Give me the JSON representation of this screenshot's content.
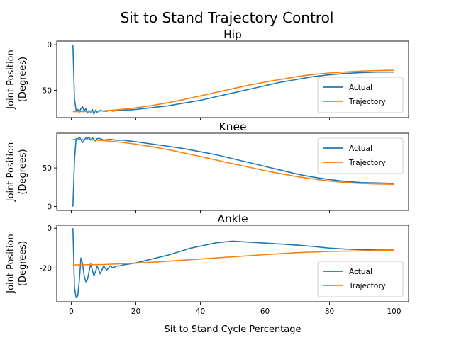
{
  "figure": {
    "title": "Sit to Stand Trajectory Control",
    "xlabel": "Sit to Stand Cycle Percentage"
  },
  "colors": {
    "actual": "#1f77b4",
    "trajectory": "#ff7f0e",
    "axes": "#000000",
    "legend_border": "#cccccc"
  },
  "chart_data": [
    {
      "type": "line",
      "title": "Hip",
      "ylabel": [
        "Joint Position",
        "(Degrees)"
      ],
      "xlim": [
        -4.5,
        104.5
      ],
      "ylim": [
        -80,
        4
      ],
      "yticks": [
        0,
        -50
      ],
      "show_xticklabels": false,
      "legend": {
        "placement": "lower-right",
        "entries": [
          "Actual",
          "Trajectory"
        ]
      },
      "series": [
        {
          "name": "Actual",
          "color": "#1f77b4",
          "x": [
            0.5,
            1.0,
            1.5,
            2,
            2.5,
            3,
            3.5,
            4,
            4.5,
            5,
            5.5,
            6,
            6.5,
            7,
            7.5,
            8,
            9,
            10,
            11,
            12,
            13,
            14,
            16,
            18,
            20,
            25,
            30,
            35,
            40,
            45,
            50,
            55,
            60,
            65,
            70,
            75,
            80,
            85,
            90,
            95,
            100
          ],
          "y": [
            0,
            -60,
            -72,
            -71,
            -74,
            -70,
            -68,
            -73,
            -70,
            -75,
            -72,
            -74,
            -71,
            -76,
            -72,
            -74,
            -72,
            -73,
            -73,
            -72,
            -73,
            -72,
            -72,
            -71.5,
            -71,
            -69,
            -67,
            -64,
            -61,
            -57,
            -53,
            -49,
            -45,
            -41,
            -38,
            -35,
            -33,
            -31.5,
            -30.5,
            -30,
            -30
          ]
        },
        {
          "name": "Trajectory",
          "color": "#ff7f0e",
          "x": [
            0.5,
            5,
            10,
            15,
            20,
            25,
            30,
            35,
            40,
            45,
            50,
            55,
            60,
            65,
            70,
            75,
            80,
            85,
            90,
            95,
            100
          ],
          "y": [
            -73.5,
            -73.3,
            -72.5,
            -71.2,
            -69.3,
            -66.7,
            -63.6,
            -60,
            -56.2,
            -52.2,
            -48.3,
            -44.4,
            -41,
            -37.9,
            -35,
            -32.6,
            -31,
            -29.8,
            -28.8,
            -28.3,
            -28
          ]
        }
      ]
    },
    {
      "type": "line",
      "title": "Knee",
      "ylabel": [
        "Joint Position",
        "(Degrees)"
      ],
      "xlim": [
        -4.5,
        104.5
      ],
      "ylim": [
        -5,
        95
      ],
      "yticks": [
        0,
        50
      ],
      "show_xticklabels": false,
      "legend": {
        "placement": "top-right",
        "entries": [
          "Actual",
          "Trajectory"
        ]
      },
      "series": [
        {
          "name": "Actual",
          "color": "#1f77b4",
          "x": [
            0.5,
            1.0,
            1.5,
            2,
            2.5,
            3,
            3.5,
            4,
            4.5,
            5,
            5.5,
            6,
            6.5,
            7,
            7.5,
            8,
            9,
            10,
            12,
            14,
            16,
            18,
            20,
            25,
            30,
            35,
            40,
            45,
            50,
            55,
            60,
            65,
            70,
            75,
            80,
            85,
            90,
            95,
            100
          ],
          "y": [
            0,
            60,
            88,
            87,
            90,
            87,
            83,
            86,
            89,
            88,
            90,
            86,
            89,
            87,
            85,
            88,
            88,
            86,
            87,
            86,
            86,
            85,
            84,
            81,
            78,
            75,
            71,
            67,
            62,
            57,
            52,
            47,
            42,
            38,
            35,
            32.5,
            31,
            30.5,
            30
          ]
        },
        {
          "name": "Trajectory",
          "color": "#ff7f0e",
          "x": [
            0.5,
            5,
            10,
            15,
            20,
            25,
            30,
            35,
            40,
            45,
            50,
            55,
            60,
            65,
            70,
            75,
            80,
            85,
            90,
            95,
            100
          ],
          "y": [
            87,
            86.7,
            85.5,
            83.5,
            80.8,
            77.5,
            73.7,
            69.3,
            64.8,
            60.1,
            55.5,
            51,
            46.5,
            42.4,
            38.7,
            35.6,
            33,
            31.1,
            29.8,
            29.1,
            28.8
          ]
        }
      ]
    },
    {
      "type": "line",
      "title": "Ankle",
      "ylabel": [
        "Joint Position",
        "(Degrees)"
      ],
      "xlim": [
        -4.5,
        104.5
      ],
      "ylim": [
        -37,
        1.5
      ],
      "yticks": [
        0,
        -20
      ],
      "xticks": [
        0,
        20,
        40,
        60,
        80,
        100
      ],
      "show_xticklabels": true,
      "legend": {
        "placement": "lower-right",
        "entries": [
          "Actual",
          "Trajectory"
        ]
      },
      "series": [
        {
          "name": "Actual",
          "color": "#1f77b4",
          "x": [
            0.5,
            1.0,
            1.5,
            2,
            2.5,
            3,
            3.5,
            4,
            4.5,
            5,
            5.5,
            6,
            6.5,
            7,
            7.5,
            8,
            8.5,
            9,
            9.5,
            10,
            11,
            12,
            13,
            14,
            15,
            16,
            18,
            20,
            25,
            30,
            35,
            37,
            40,
            45,
            50,
            55,
            60,
            65,
            70,
            75,
            80,
            85,
            90,
            95,
            100
          ],
          "y": [
            0,
            -30,
            -35,
            -34,
            -26,
            -15,
            -18,
            -24,
            -27,
            -26,
            -22,
            -18,
            -21,
            -24,
            -22,
            -19,
            -21,
            -23,
            -21,
            -19,
            -21,
            -19,
            -20,
            -19,
            -19,
            -18.5,
            -18,
            -17.5,
            -15.5,
            -13.5,
            -11,
            -10,
            -9,
            -7.3,
            -6.5,
            -7,
            -7.5,
            -8,
            -8.5,
            -9.2,
            -10,
            -10.5,
            -10.8,
            -11,
            -11
          ]
        },
        {
          "name": "Trajectory",
          "color": "#ff7f0e",
          "x": [
            0.5,
            10,
            20,
            30,
            40,
            50,
            60,
            70,
            80,
            90,
            100
          ],
          "y": [
            -18.5,
            -18.3,
            -17.6,
            -16.6,
            -15.5,
            -14.4,
            -13.3,
            -12.3,
            -11.7,
            -11.4,
            -11.2
          ]
        }
      ]
    }
  ]
}
